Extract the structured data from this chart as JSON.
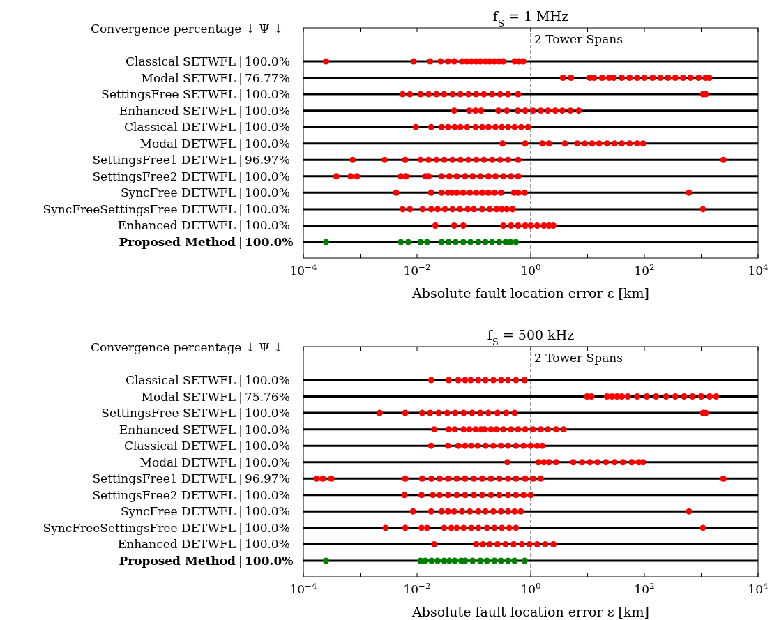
{
  "chart_data": [
    {
      "type": "scatter",
      "orientation": "horizontal",
      "title": "f$_{S}$ = 1 MHz",
      "xlabel": "Absolute fault location error ε [km]",
      "annotations": [
        "Convergence percentage ↓ Ψ ↓"
      ],
      "log": "x",
      "xlim": [
        0.0001,
        10000
      ],
      "xticks": [
        {
          "value": 0.0001,
          "label": "10$^{−4}$"
        },
        {
          "value": 0.001,
          "label": null
        },
        {
          "value": 0.01,
          "label": "10$^{−2}$"
        },
        {
          "value": 0.1,
          "label": null
        },
        {
          "value": 1,
          "label": "10$^{0}$"
        },
        {
          "value": 10,
          "label": null
        },
        {
          "value": 100,
          "label": "10$^{2}$"
        },
        {
          "value": 1000,
          "label": null
        },
        {
          "value": 10000,
          "label": "10$^{4}$"
        }
      ],
      "grid": "y",
      "marker": "circle",
      "ref_lines": [
        {
          "axis": "x",
          "value": 1,
          "label": "2 Tower Spans",
          "line_style": "dashed"
        }
      ],
      "categories": [
        "Classical SETWFL | 100.0%",
        "Modal SETWFL | 76.77%",
        "SettingsFree SETWFL | 100.0%",
        "Enhanced SETWFL | 100.0%",
        "Classical DETWFL | 100.0%",
        "Modal DETWFL | 100.0%",
        "SettingsFree1 DETWFL | 96.97%",
        "SettingsFree2 DETWFL | 100.0%",
        "SyncFree DETWFL | 100.0%",
        "SyncFreeSettingsFree DETWFL | 100.0%",
        "Enhanced DETWFL | 100.0%",
        "Proposed Method | 100.0%"
      ],
      "series": [
        {
          "color": "#ff0000",
          "x": [
            "Classical SETWFL | 100.0%",
            "Classical SETWFL | 100.0%",
            "Classical SETWFL | 100.0%",
            "Classical SETWFL | 100.0%",
            "Classical SETWFL | 100.0%",
            "Classical SETWFL | 100.0%",
            "Classical SETWFL | 100.0%",
            "Classical SETWFL | 100.0%",
            "Classical SETWFL | 100.0%",
            "Classical SETWFL | 100.0%",
            "Classical SETWFL | 100.0%",
            "Classical SETWFL | 100.0%",
            "Classical SETWFL | 100.0%",
            "Classical SETWFL | 100.0%",
            "Classical SETWFL | 100.0%",
            "Classical SETWFL | 100.0%",
            "Classical SETWFL | 100.0%",
            "Classical SETWFL | 100.0%",
            "Classical SETWFL | 100.0%"
          ],
          "values": [
            0.00025,
            0.0087,
            0.017,
            0.026,
            0.035,
            0.045,
            0.062,
            0.075,
            0.09,
            0.11,
            0.13,
            0.16,
            0.19,
            0.23,
            0.28,
            0.33,
            0.52,
            0.62,
            0.74
          ]
        },
        {
          "color": "#ff0000",
          "x": [
            "Modal SETWFL | 76.77%",
            "Modal SETWFL | 76.77%",
            "Modal SETWFL | 76.77%",
            "Modal SETWFL | 76.77%",
            "Modal SETWFL | 76.77%",
            "Modal SETWFL | 76.77%",
            "Modal SETWFL | 76.77%",
            "Modal SETWFL | 76.77%",
            "Modal SETWFL | 76.77%",
            "Modal SETWFL | 76.77%",
            "Modal SETWFL | 76.77%",
            "Modal SETWFL | 76.77%",
            "Modal SETWFL | 76.77%",
            "Modal SETWFL | 76.77%",
            "Modal SETWFL | 76.77%",
            "Modal SETWFL | 76.77%",
            "Modal SETWFL | 76.77%",
            "Modal SETWFL | 76.77%",
            "Modal SETWFL | 76.77%",
            "Modal SETWFL | 76.77%"
          ],
          "values": [
            3.7,
            5.1,
            11,
            13,
            18,
            24,
            29,
            40,
            55,
            75,
            100,
            140,
            190,
            260,
            350,
            480,
            650,
            900,
            1200,
            1380
          ]
        },
        {
          "color": "#ff0000",
          "x": [
            "SettingsFree SETWFL | 100.0%",
            "SettingsFree SETWFL | 100.0%",
            "SettingsFree SETWFL | 100.0%",
            "SettingsFree SETWFL | 100.0%",
            "SettingsFree SETWFL | 100.0%",
            "SettingsFree SETWFL | 100.0%",
            "SettingsFree SETWFL | 100.0%",
            "SettingsFree SETWFL | 100.0%",
            "SettingsFree SETWFL | 100.0%",
            "SettingsFree SETWFL | 100.0%",
            "SettingsFree SETWFL | 100.0%",
            "SettingsFree SETWFL | 100.0%",
            "SettingsFree SETWFL | 100.0%",
            "SettingsFree SETWFL | 100.0%",
            "SettingsFree SETWFL | 100.0%",
            "SettingsFree SETWFL | 100.0%",
            "SettingsFree SETWFL | 100.0%"
          ],
          "values": [
            0.0056,
            0.0075,
            0.0115,
            0.016,
            0.022,
            0.03,
            0.042,
            0.058,
            0.08,
            0.11,
            0.15,
            0.21,
            0.29,
            0.4,
            0.6,
            1070,
            1200
          ]
        },
        {
          "color": "#ff0000",
          "x": [
            "Enhanced SETWFL | 100.0%",
            "Enhanced SETWFL | 100.0%",
            "Enhanced SETWFL | 100.0%",
            "Enhanced SETWFL | 100.0%",
            "Enhanced SETWFL | 100.0%",
            "Enhanced SETWFL | 100.0%",
            "Enhanced SETWFL | 100.0%",
            "Enhanced SETWFL | 100.0%",
            "Enhanced SETWFL | 100.0%",
            "Enhanced SETWFL | 100.0%",
            "Enhanced SETWFL | 100.0%",
            "Enhanced SETWFL | 100.0%",
            "Enhanced SETWFL | 100.0%",
            "Enhanced SETWFL | 100.0%",
            "Enhanced SETWFL | 100.0%"
          ],
          "values": [
            0.045,
            0.083,
            0.107,
            0.134,
            0.27,
            0.38,
            0.59,
            0.8,
            1.1,
            1.5,
            2,
            2.7,
            3.6,
            5,
            7
          ]
        },
        {
          "color": "#ff0000",
          "x": [
            "Classical DETWFL | 100.0%",
            "Classical DETWFL | 100.0%",
            "Classical DETWFL | 100.0%",
            "Classical DETWFL | 100.0%",
            "Classical DETWFL | 100.0%",
            "Classical DETWFL | 100.0%",
            "Classical DETWFL | 100.0%",
            "Classical DETWFL | 100.0%",
            "Classical DETWFL | 100.0%",
            "Classical DETWFL | 100.0%",
            "Classical DETWFL | 100.0%",
            "Classical DETWFL | 100.0%",
            "Classical DETWFL | 100.0%",
            "Classical DETWFL | 100.0%",
            "Classical DETWFL | 100.0%",
            "Classical DETWFL | 100.0%"
          ],
          "values": [
            0.0095,
            0.0177,
            0.027,
            0.035,
            0.046,
            0.058,
            0.076,
            0.107,
            0.14,
            0.18,
            0.24,
            0.31,
            0.4,
            0.52,
            0.68,
            0.89
          ]
        },
        {
          "color": "#ff0000",
          "x": [
            "Modal DETWFL | 100.0%",
            "Modal DETWFL | 100.0%",
            "Modal DETWFL | 100.0%",
            "Modal DETWFL | 100.0%",
            "Modal DETWFL | 100.0%",
            "Modal DETWFL | 100.0%",
            "Modal DETWFL | 100.0%",
            "Modal DETWFL | 100.0%",
            "Modal DETWFL | 100.0%",
            "Modal DETWFL | 100.0%",
            "Modal DETWFL | 100.0%",
            "Modal DETWFL | 100.0%",
            "Modal DETWFL | 100.0%",
            "Modal DETWFL | 100.0%",
            "Modal DETWFL | 100.0%"
          ],
          "values": [
            0.32,
            0.8,
            1.6,
            2.1,
            4,
            6.6,
            9,
            12,
            16,
            22,
            30,
            40,
            55,
            75,
            95
          ]
        },
        {
          "color": "#ff0000",
          "x": [
            "SettingsFree1 DETWFL | 96.97%",
            "SettingsFree1 DETWFL | 96.97%",
            "SettingsFree1 DETWFL | 96.97%",
            "SettingsFree1 DETWFL | 96.97%",
            "SettingsFree1 DETWFL | 96.97%",
            "SettingsFree1 DETWFL | 96.97%",
            "SettingsFree1 DETWFL | 96.97%",
            "SettingsFree1 DETWFL | 96.97%",
            "SettingsFree1 DETWFL | 96.97%",
            "SettingsFree1 DETWFL | 96.97%",
            "SettingsFree1 DETWFL | 96.97%",
            "SettingsFree1 DETWFL | 96.97%",
            "SettingsFree1 DETWFL | 96.97%",
            "SettingsFree1 DETWFL | 96.97%",
            "SettingsFree1 DETWFL | 96.97%",
            "SettingsFree1 DETWFL | 96.97%",
            "SettingsFree1 DETWFL | 96.97%"
          ],
          "values": [
            0.00074,
            0.0027,
            0.0062,
            0.0115,
            0.016,
            0.022,
            0.03,
            0.042,
            0.058,
            0.08,
            0.11,
            0.15,
            0.21,
            0.29,
            0.4,
            0.6,
            2450
          ]
        },
        {
          "color": "#ff0000",
          "x": [
            "SettingsFree2 DETWFL | 100.0%",
            "SettingsFree2 DETWFL | 100.0%",
            "SettingsFree2 DETWFL | 100.0%",
            "SettingsFree2 DETWFL | 100.0%",
            "SettingsFree2 DETWFL | 100.0%",
            "SettingsFree2 DETWFL | 100.0%",
            "SettingsFree2 DETWFL | 100.0%",
            "SettingsFree2 DETWFL | 100.0%",
            "SettingsFree2 DETWFL | 100.0%",
            "SettingsFree2 DETWFL | 100.0%",
            "SettingsFree2 DETWFL | 100.0%",
            "SettingsFree2 DETWFL | 100.0%",
            "SettingsFree2 DETWFL | 100.0%",
            "SettingsFree2 DETWFL | 100.0%",
            "SettingsFree2 DETWFL | 100.0%",
            "SettingsFree2 DETWFL | 100.0%",
            "SettingsFree2 DETWFL | 100.0%",
            "SettingsFree2 DETWFL | 100.0%"
          ],
          "values": [
            0.00038,
            0.00068,
            0.00088,
            0.0052,
            0.0064,
            0.014,
            0.016,
            0.027,
            0.037,
            0.05,
            0.07,
            0.095,
            0.13,
            0.18,
            0.24,
            0.33,
            0.45,
            0.6
          ]
        },
        {
          "color": "#ff0000",
          "x": [
            "SyncFree DETWFL | 100.0%",
            "SyncFree DETWFL | 100.0%",
            "SyncFree DETWFL | 100.0%",
            "SyncFree DETWFL | 100.0%",
            "SyncFree DETWFL | 100.0%",
            "SyncFree DETWFL | 100.0%",
            "SyncFree DETWFL | 100.0%",
            "SyncFree DETWFL | 100.0%",
            "SyncFree DETWFL | 100.0%",
            "SyncFree DETWFL | 100.0%",
            "SyncFree DETWFL | 100.0%",
            "SyncFree DETWFL | 100.0%",
            "SyncFree DETWFL | 100.0%",
            "SyncFree DETWFL | 100.0%",
            "SyncFree DETWFL | 100.0%",
            "SyncFree DETWFL | 100.0%",
            "SyncFree DETWFL | 100.0%"
          ],
          "values": [
            0.0043,
            0.0177,
            0.027,
            0.035,
            0.041,
            0.05,
            0.065,
            0.085,
            0.11,
            0.14,
            0.18,
            0.23,
            0.3,
            0.51,
            0.6,
            0.78,
            610
          ]
        },
        {
          "color": "#ff0000",
          "x": [
            "SyncFreeSettingsFree DETWFL | 100.0%",
            "SyncFreeSettingsFree DETWFL | 100.0%",
            "SyncFreeSettingsFree DETWFL | 100.0%",
            "SyncFreeSettingsFree DETWFL | 100.0%",
            "SyncFreeSettingsFree DETWFL | 100.0%",
            "SyncFreeSettingsFree DETWFL | 100.0%",
            "SyncFreeSettingsFree DETWFL | 100.0%",
            "SyncFreeSettingsFree DETWFL | 100.0%",
            "SyncFreeSettingsFree DETWFL | 100.0%",
            "SyncFreeSettingsFree DETWFL | 100.0%",
            "SyncFreeSettingsFree DETWFL | 100.0%",
            "SyncFreeSettingsFree DETWFL | 100.0%",
            "SyncFreeSettingsFree DETWFL | 100.0%",
            "SyncFreeSettingsFree DETWFL | 100.0%",
            "SyncFreeSettingsFree DETWFL | 100.0%",
            "SyncFreeSettingsFree DETWFL | 100.0%",
            "SyncFreeSettingsFree DETWFL | 100.0%"
          ],
          "values": [
            0.0056,
            0.0075,
            0.0125,
            0.0177,
            0.023,
            0.031,
            0.042,
            0.057,
            0.078,
            0.1,
            0.14,
            0.19,
            0.25,
            0.31,
            0.38,
            0.48,
            1070
          ]
        },
        {
          "color": "#ff0000",
          "x": [
            "Enhanced DETWFL | 100.0%",
            "Enhanced DETWFL | 100.0%",
            "Enhanced DETWFL | 100.0%",
            "Enhanced DETWFL | 100.0%",
            "Enhanced DETWFL | 100.0%",
            "Enhanced DETWFL | 100.0%",
            "Enhanced DETWFL | 100.0%",
            "Enhanced DETWFL | 100.0%",
            "Enhanced DETWFL | 100.0%",
            "Enhanced DETWFL | 100.0%",
            "Enhanced DETWFL | 100.0%",
            "Enhanced DETWFL | 100.0%"
          ],
          "values": [
            0.021,
            0.045,
            0.065,
            0.33,
            0.45,
            0.6,
            0.8,
            1,
            1.3,
            1.7,
            2.1,
            2.5
          ]
        },
        {
          "color": "#008000",
          "x": [
            "Proposed Method | 100.0%",
            "Proposed Method | 100.0%",
            "Proposed Method | 100.0%",
            "Proposed Method | 100.0%",
            "Proposed Method | 100.0%",
            "Proposed Method | 100.0%",
            "Proposed Method | 100.0%",
            "Proposed Method | 100.0%",
            "Proposed Method | 100.0%",
            "Proposed Method | 100.0%",
            "Proposed Method | 100.0%",
            "Proposed Method | 100.0%",
            "Proposed Method | 100.0%",
            "Proposed Method | 100.0%",
            "Proposed Method | 100.0%",
            "Proposed Method | 100.0%",
            "Proposed Method | 100.0%"
          ],
          "values": [
            0.00025,
            0.0052,
            0.007,
            0.0115,
            0.015,
            0.027,
            0.036,
            0.048,
            0.065,
            0.087,
            0.12,
            0.16,
            0.21,
            0.28,
            0.36,
            0.44,
            0.55
          ]
        }
      ]
    },
    {
      "type": "scatter",
      "orientation": "horizontal",
      "title": "f$_{S}$ = 500 kHz",
      "xlabel": "Absolute fault location error ε [km]",
      "annotations": [
        "Convergence percentage ↓ Ψ ↓"
      ],
      "log": "x",
      "xlim": [
        0.0001,
        10000
      ],
      "xticks": [
        {
          "value": 0.0001,
          "label": "10$^{−4}$"
        },
        {
          "value": 0.001,
          "label": null
        },
        {
          "value": 0.01,
          "label": "10$^{−2}$"
        },
        {
          "value": 0.1,
          "label": null
        },
        {
          "value": 1,
          "label": "10$^{0}$"
        },
        {
          "value": 10,
          "label": null
        },
        {
          "value": 100,
          "label": "10$^{2}$"
        },
        {
          "value": 1000,
          "label": null
        },
        {
          "value": 10000,
          "label": "10$^{4}$"
        }
      ],
      "grid": "y",
      "marker": "circle",
      "ref_lines": [
        {
          "axis": "x",
          "value": 1,
          "label": "2 Tower Spans",
          "line_style": "dashed"
        }
      ],
      "categories": [
        "Classical SETWFL | 100.0%",
        "Modal SETWFL | 75.76%",
        "SettingsFree SETWFL | 100.0%",
        "Enhanced SETWFL | 100.0%",
        "Classical DETWFL | 100.0%",
        "Modal DETWFL | 100.0%",
        "SettingsFree1 DETWFL | 96.97%",
        "SettingsFree2 DETWFL | 100.0%",
        "SyncFree DETWFL | 100.0%",
        "SyncFreeSettingsFree DETWFL | 100.0%",
        "Enhanced DETWFL | 100.0%",
        "Proposed Method | 100.0%"
      ],
      "series": [
        {
          "color": "#ff0000",
          "x": [
            "Classical SETWFL | 100.0%",
            "Classical SETWFL | 100.0%",
            "Classical SETWFL | 100.0%",
            "Classical SETWFL | 100.0%",
            "Classical SETWFL | 100.0%",
            "Classical SETWFL | 100.0%",
            "Classical SETWFL | 100.0%",
            "Classical SETWFL | 100.0%",
            "Classical SETWFL | 100.0%",
            "Classical SETWFL | 100.0%",
            "Classical SETWFL | 100.0%",
            "Classical SETWFL | 100.0%"
          ],
          "values": [
            0.0177,
            0.036,
            0.053,
            0.07,
            0.088,
            0.12,
            0.16,
            0.22,
            0.3,
            0.4,
            0.55,
            0.78
          ]
        },
        {
          "color": "#ff0000",
          "x": [
            "Modal SETWFL | 75.76%",
            "Modal SETWFL | 75.76%",
            "Modal SETWFL | 75.76%",
            "Modal SETWFL | 75.76%",
            "Modal SETWFL | 75.76%",
            "Modal SETWFL | 75.76%",
            "Modal SETWFL | 75.76%",
            "Modal SETWFL | 75.76%",
            "Modal SETWFL | 75.76%",
            "Modal SETWFL | 75.76%",
            "Modal SETWFL | 75.76%",
            "Modal SETWFL | 75.76%",
            "Modal SETWFL | 75.76%",
            "Modal SETWFL | 75.76%",
            "Modal SETWFL | 75.76%",
            "Modal SETWFL | 75.76%",
            "Modal SETWFL | 75.76%"
          ],
          "values": [
            9.8,
            11.7,
            22,
            27,
            33,
            40,
            51,
            75,
            110,
            160,
            240,
            350,
            500,
            700,
            1000,
            1400,
            1830
          ]
        },
        {
          "color": "#ff0000",
          "x": [
            "SettingsFree SETWFL | 100.0%",
            "SettingsFree SETWFL | 100.0%",
            "SettingsFree SETWFL | 100.0%",
            "SettingsFree SETWFL | 100.0%",
            "SettingsFree SETWFL | 100.0%",
            "SettingsFree SETWFL | 100.0%",
            "SettingsFree SETWFL | 100.0%",
            "SettingsFree SETWFL | 100.0%",
            "SettingsFree SETWFL | 100.0%",
            "SettingsFree SETWFL | 100.0%",
            "SettingsFree SETWFL | 100.0%",
            "SettingsFree SETWFL | 100.0%",
            "SettingsFree SETWFL | 100.0%",
            "SettingsFree SETWFL | 100.0%",
            "SettingsFree SETWFL | 100.0%",
            "SettingsFree SETWFL | 100.0%"
          ],
          "values": [
            0.0022,
            0.0062,
            0.0123,
            0.017,
            0.024,
            0.034,
            0.047,
            0.066,
            0.093,
            0.13,
            0.18,
            0.26,
            0.37,
            0.52,
            1070,
            1200
          ]
        },
        {
          "color": "#ff0000",
          "x": [
            "Enhanced SETWFL | 100.0%",
            "Enhanced SETWFL | 100.0%",
            "Enhanced SETWFL | 100.0%",
            "Enhanced SETWFL | 100.0%",
            "Enhanced SETWFL | 100.0%",
            "Enhanced SETWFL | 100.0%",
            "Enhanced SETWFL | 100.0%",
            "Enhanced SETWFL | 100.0%",
            "Enhanced SETWFL | 100.0%",
            "Enhanced SETWFL | 100.0%",
            "Enhanced SETWFL | 100.0%",
            "Enhanced SETWFL | 100.0%",
            "Enhanced SETWFL | 100.0%",
            "Enhanced SETWFL | 100.0%",
            "Enhanced SETWFL | 100.0%",
            "Enhanced SETWFL | 100.0%",
            "Enhanced SETWFL | 100.0%",
            "Enhanced SETWFL | 100.0%",
            "Enhanced SETWFL | 100.0%"
          ],
          "values": [
            0.02,
            0.036,
            0.046,
            0.066,
            0.083,
            0.107,
            0.134,
            0.155,
            0.2,
            0.25,
            0.33,
            0.45,
            0.6,
            0.8,
            1.1,
            1.5,
            2,
            2.8,
            3.8
          ]
        },
        {
          "color": "#ff0000",
          "x": [
            "Classical DETWFL | 100.0%",
            "Classical DETWFL | 100.0%",
            "Classical DETWFL | 100.0%",
            "Classical DETWFL | 100.0%",
            "Classical DETWFL | 100.0%",
            "Classical DETWFL | 100.0%",
            "Classical DETWFL | 100.0%",
            "Classical DETWFL | 100.0%",
            "Classical DETWFL | 100.0%",
            "Classical DETWFL | 100.0%",
            "Classical DETWFL | 100.0%",
            "Classical DETWFL | 100.0%",
            "Classical DETWFL | 100.0%",
            "Classical DETWFL | 100.0%",
            "Classical DETWFL | 100.0%"
          ],
          "values": [
            0.0177,
            0.035,
            0.053,
            0.07,
            0.09,
            0.117,
            0.16,
            0.22,
            0.3,
            0.4,
            0.55,
            0.75,
            1,
            1.3,
            1.6
          ]
        },
        {
          "color": "#ff0000",
          "x": [
            "Modal DETWFL | 100.0%",
            "Modal DETWFL | 100.0%",
            "Modal DETWFL | 100.0%",
            "Modal DETWFL | 100.0%",
            "Modal DETWFL | 100.0%",
            "Modal DETWFL | 100.0%",
            "Modal DETWFL | 100.0%",
            "Modal DETWFL | 100.0%",
            "Modal DETWFL | 100.0%",
            "Modal DETWFL | 100.0%",
            "Modal DETWFL | 100.0%",
            "Modal DETWFL | 100.0%",
            "Modal DETWFL | 100.0%",
            "Modal DETWFL | 100.0%",
            "Modal DETWFL | 100.0%"
          ],
          "values": [
            0.39,
            1.36,
            1.7,
            2.1,
            2.8,
            5.6,
            8,
            11,
            15,
            21,
            30,
            42,
            60,
            80,
            95
          ]
        },
        {
          "color": "#ff0000",
          "x": [
            "SettingsFree1 DETWFL | 96.97%",
            "SettingsFree1 DETWFL | 96.97%",
            "SettingsFree1 DETWFL | 96.97%",
            "SettingsFree1 DETWFL | 96.97%",
            "SettingsFree1 DETWFL | 96.97%",
            "SettingsFree1 DETWFL | 96.97%",
            "SettingsFree1 DETWFL | 96.97%",
            "SettingsFree1 DETWFL | 96.97%",
            "SettingsFree1 DETWFL | 96.97%",
            "SettingsFree1 DETWFL | 96.97%",
            "SettingsFree1 DETWFL | 96.97%",
            "SettingsFree1 DETWFL | 96.97%",
            "SettingsFree1 DETWFL | 96.97%",
            "SettingsFree1 DETWFL | 96.97%",
            "SettingsFree1 DETWFL | 96.97%",
            "SettingsFree1 DETWFL | 96.97%",
            "SettingsFree1 DETWFL | 96.97%",
            "SettingsFree1 DETWFL | 96.97%",
            "SettingsFree1 DETWFL | 96.97%",
            "SettingsFree1 DETWFL | 96.97%"
          ],
          "values": [
            0.00017,
            0.00022,
            0.00031,
            0.0062,
            0.0123,
            0.018,
            0.025,
            0.035,
            0.05,
            0.07,
            0.1,
            0.14,
            0.2,
            0.28,
            0.4,
            0.55,
            0.8,
            1.1,
            1.5,
            2450
          ]
        },
        {
          "color": "#ff0000",
          "x": [
            "SettingsFree2 DETWFL | 100.0%",
            "SettingsFree2 DETWFL | 100.0%",
            "SettingsFree2 DETWFL | 100.0%",
            "SettingsFree2 DETWFL | 100.0%",
            "SettingsFree2 DETWFL | 100.0%",
            "SettingsFree2 DETWFL | 100.0%",
            "SettingsFree2 DETWFL | 100.0%",
            "SettingsFree2 DETWFL | 100.0%",
            "SettingsFree2 DETWFL | 100.0%",
            "SettingsFree2 DETWFL | 100.0%",
            "SettingsFree2 DETWFL | 100.0%",
            "SettingsFree2 DETWFL | 100.0%",
            "SettingsFree2 DETWFL | 100.0%",
            "SettingsFree2 DETWFL | 100.0%",
            "SettingsFree2 DETWFL | 100.0%"
          ],
          "values": [
            0.006,
            0.012,
            0.019,
            0.025,
            0.035,
            0.05,
            0.07,
            0.1,
            0.14,
            0.2,
            0.28,
            0.4,
            0.55,
            0.75,
            1
          ]
        },
        {
          "color": "#ff0000",
          "x": [
            "SyncFree DETWFL | 100.0%",
            "SyncFree DETWFL | 100.0%",
            "SyncFree DETWFL | 100.0%",
            "SyncFree DETWFL | 100.0%",
            "SyncFree DETWFL | 100.0%",
            "SyncFree DETWFL | 100.0%",
            "SyncFree DETWFL | 100.0%",
            "SyncFree DETWFL | 100.0%",
            "SyncFree DETWFL | 100.0%",
            "SyncFree DETWFL | 100.0%",
            "SyncFree DETWFL | 100.0%",
            "SyncFree DETWFL | 100.0%",
            "SyncFree DETWFL | 100.0%",
            "SyncFree DETWFL | 100.0%",
            "SyncFree DETWFL | 100.0%"
          ],
          "values": [
            0.0085,
            0.0177,
            0.027,
            0.035,
            0.045,
            0.062,
            0.085,
            0.12,
            0.16,
            0.22,
            0.3,
            0.4,
            0.52,
            0.67,
            610
          ]
        },
        {
          "color": "#ff0000",
          "x": [
            "SyncFreeSettingsFree DETWFL | 100.0%",
            "SyncFreeSettingsFree DETWFL | 100.0%",
            "SyncFreeSettingsFree DETWFL | 100.0%",
            "SyncFreeSettingsFree DETWFL | 100.0%",
            "SyncFreeSettingsFree DETWFL | 100.0%",
            "SyncFreeSettingsFree DETWFL | 100.0%",
            "SyncFreeSettingsFree DETWFL | 100.0%",
            "SyncFreeSettingsFree DETWFL | 100.0%",
            "SyncFreeSettingsFree DETWFL | 100.0%",
            "SyncFreeSettingsFree DETWFL | 100.0%",
            "SyncFreeSettingsFree DETWFL | 100.0%",
            "SyncFreeSettingsFree DETWFL | 100.0%",
            "SyncFreeSettingsFree DETWFL | 100.0%",
            "SyncFreeSettingsFree DETWFL | 100.0%",
            "SyncFreeSettingsFree DETWFL | 100.0%",
            "SyncFreeSettingsFree DETWFL | 100.0%"
          ],
          "values": [
            0.0028,
            0.0062,
            0.012,
            0.015,
            0.03,
            0.04,
            0.05,
            0.066,
            0.09,
            0.12,
            0.17,
            0.23,
            0.31,
            0.42,
            0.55,
            1070
          ]
        },
        {
          "color": "#ff0000",
          "x": [
            "Enhanced DETWFL | 100.0%",
            "Enhanced DETWFL | 100.0%",
            "Enhanced DETWFL | 100.0%",
            "Enhanced DETWFL | 100.0%",
            "Enhanced DETWFL | 100.0%",
            "Enhanced DETWFL | 100.0%",
            "Enhanced DETWFL | 100.0%",
            "Enhanced DETWFL | 100.0%",
            "Enhanced DETWFL | 100.0%",
            "Enhanced DETWFL | 100.0%",
            "Enhanced DETWFL | 100.0%",
            "Enhanced DETWFL | 100.0%"
          ],
          "values": [
            0.02,
            0.11,
            0.145,
            0.19,
            0.26,
            0.36,
            0.5,
            0.7,
            0.95,
            1.3,
            1.8,
            2.5
          ]
        },
        {
          "color": "#008000",
          "x": [
            "Proposed Method | 100.0%",
            "Proposed Method | 100.0%",
            "Proposed Method | 100.0%",
            "Proposed Method | 100.0%",
            "Proposed Method | 100.0%",
            "Proposed Method | 100.0%",
            "Proposed Method | 100.0%",
            "Proposed Method | 100.0%",
            "Proposed Method | 100.0%",
            "Proposed Method | 100.0%",
            "Proposed Method | 100.0%",
            "Proposed Method | 100.0%",
            "Proposed Method | 100.0%",
            "Proposed Method | 100.0%",
            "Proposed Method | 100.0%",
            "Proposed Method | 100.0%",
            "Proposed Method | 100.0%",
            "Proposed Method | 100.0%"
          ],
          "values": [
            0.00025,
            0.0115,
            0.014,
            0.018,
            0.023,
            0.03,
            0.037,
            0.046,
            0.06,
            0.07,
            0.095,
            0.13,
            0.17,
            0.23,
            0.3,
            0.4,
            0.52,
            0.78
          ]
        }
      ]
    }
  ]
}
